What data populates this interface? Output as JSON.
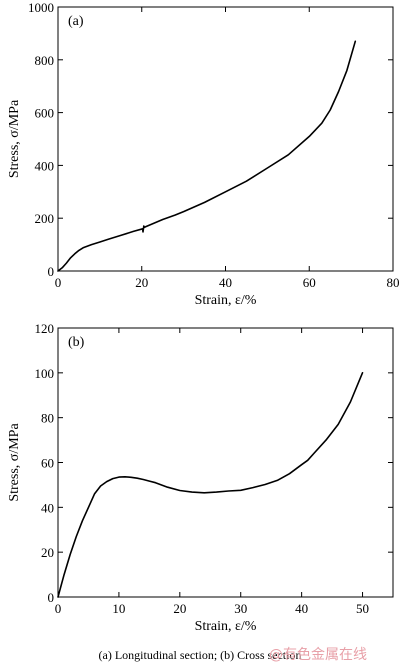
{
  "caption": "(a) Longitudinal section; (b) Cross section",
  "watermark": "@有色金属在线",
  "chart_data": [
    {
      "type": "line",
      "panel_label": "(a)",
      "xlabel": "Strain, ε/%",
      "ylabel": "Stress, σ/MPa",
      "xlim": [
        0,
        80
      ],
      "ylim": [
        0,
        1000
      ],
      "xticks": [
        0,
        20,
        40,
        60,
        80
      ],
      "yticks": [
        200,
        400,
        600,
        800,
        1000
      ],
      "grid": false,
      "series": [
        {
          "x": [
            0,
            1,
            2,
            3,
            4,
            5,
            6,
            8,
            10,
            12,
            15,
            18,
            20.2,
            20.3,
            20.5,
            20.6,
            21,
            25,
            28,
            30,
            35,
            40,
            45,
            50,
            55,
            60,
            63,
            65,
            67,
            69,
            71
          ],
          "y": [
            0,
            12,
            30,
            50,
            65,
            78,
            88,
            100,
            110,
            120,
            135,
            150,
            160,
            148,
            170,
            165,
            168,
            195,
            212,
            225,
            260,
            300,
            340,
            390,
            440,
            510,
            560,
            610,
            680,
            760,
            870
          ]
        }
      ]
    },
    {
      "type": "line",
      "panel_label": "(b)",
      "xlabel": "Strain, ε/%",
      "ylabel": "Stress, σ/MPa",
      "xlim": [
        0,
        55
      ],
      "ylim": [
        0,
        120
      ],
      "xticks": [
        0,
        10,
        20,
        30,
        40,
        50
      ],
      "yticks": [
        20,
        40,
        60,
        80,
        100,
        120
      ],
      "grid": false,
      "series": [
        {
          "x": [
            0,
            1,
            2,
            3,
            4,
            5,
            6,
            7,
            8,
            9,
            10,
            11,
            12,
            13,
            14,
            15,
            16,
            18,
            20,
            22,
            24,
            26,
            28,
            30,
            32,
            34,
            36,
            38,
            40,
            41,
            42,
            44,
            46,
            48,
            50
          ],
          "y": [
            0,
            10,
            19,
            27,
            34,
            40,
            46,
            49.5,
            51.5,
            52.8,
            53.5,
            53.6,
            53.4,
            53,
            52.4,
            51.7,
            51,
            49,
            47.5,
            46.8,
            46.5,
            46.8,
            47.3,
            47.6,
            48.8,
            50.2,
            52,
            55,
            59,
            61,
            64,
            70,
            77,
            87,
            100
          ]
        }
      ]
    }
  ]
}
